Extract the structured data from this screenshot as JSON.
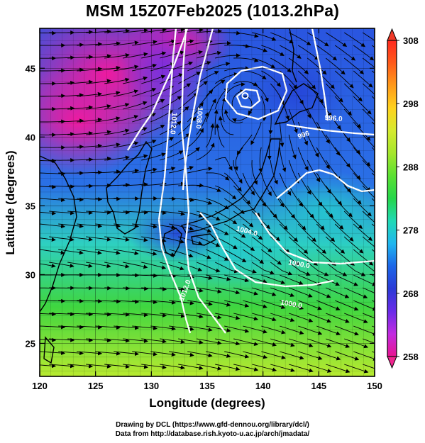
{
  "title": "MSM 15Z07Feb2025 (1013.2hPa)",
  "map": {
    "xlabel": "Longitude (degrees)",
    "ylabel": "Latitude  (degrees)",
    "xlim": [
      120,
      150
    ],
    "ylim": [
      22.6,
      47.9
    ],
    "x_ticks": [
      "120",
      "125",
      "130",
      "135",
      "140",
      "145",
      "150"
    ],
    "y_ticks": [
      "25",
      "30",
      "35",
      "40",
      "45"
    ],
    "x_tick_values": [
      120,
      125,
      130,
      135,
      140,
      145,
      150
    ],
    "y_tick_values": [
      25,
      30,
      35,
      40,
      45
    ],
    "contour_labels": [
      {
        "text": "1012.0",
        "lon": 131.8,
        "lat": 41.0,
        "angle": 95
      },
      {
        "text": "1008.0",
        "lon": 134.1,
        "lat": 41.4,
        "angle": 95
      },
      {
        "text": "1012.0",
        "lon": 133.2,
        "lat": 28.8,
        "angle": -70
      },
      {
        "text": "1004.0",
        "lon": 138.5,
        "lat": 33.0,
        "angle": 15
      },
      {
        "text": "1000.0",
        "lon": 143.2,
        "lat": 30.6,
        "angle": 10
      },
      {
        "text": "1000.0",
        "lon": 142.5,
        "lat": 27.7,
        "angle": 10
      },
      {
        "text": "996.0",
        "lon": 146.3,
        "lat": 41.2,
        "angle": 5
      },
      {
        "text": "996",
        "lon": 143.7,
        "lat": 40.0,
        "angle": -20
      }
    ],
    "low_center": {
      "lon": 138.4,
      "lat": 43.0
    }
  },
  "colorbar": {
    "ticks": [
      "308",
      "298",
      "288",
      "278",
      "268",
      "258"
    ],
    "tick_values": [
      308,
      298,
      288,
      278,
      268,
      258
    ],
    "range": [
      258,
      308
    ],
    "colors": [
      "#e8148f",
      "#c22be0",
      "#6a2be8",
      "#2b3ad6",
      "#1c66e8",
      "#1fb6ef",
      "#20d9b5",
      "#25d64a",
      "#5ae032",
      "#a5e62c",
      "#d5ea2f",
      "#ffd21e",
      "#ff9a1a",
      "#ff5a1a",
      "#ff2a1f"
    ]
  },
  "footer": {
    "line1": "Drawing by DCL (https://www.gfd-dennou.org/library/dcl/)",
    "line2": "Data from http://database.rish.kyoto-u.ac.jp/arch/jmadata/"
  }
}
